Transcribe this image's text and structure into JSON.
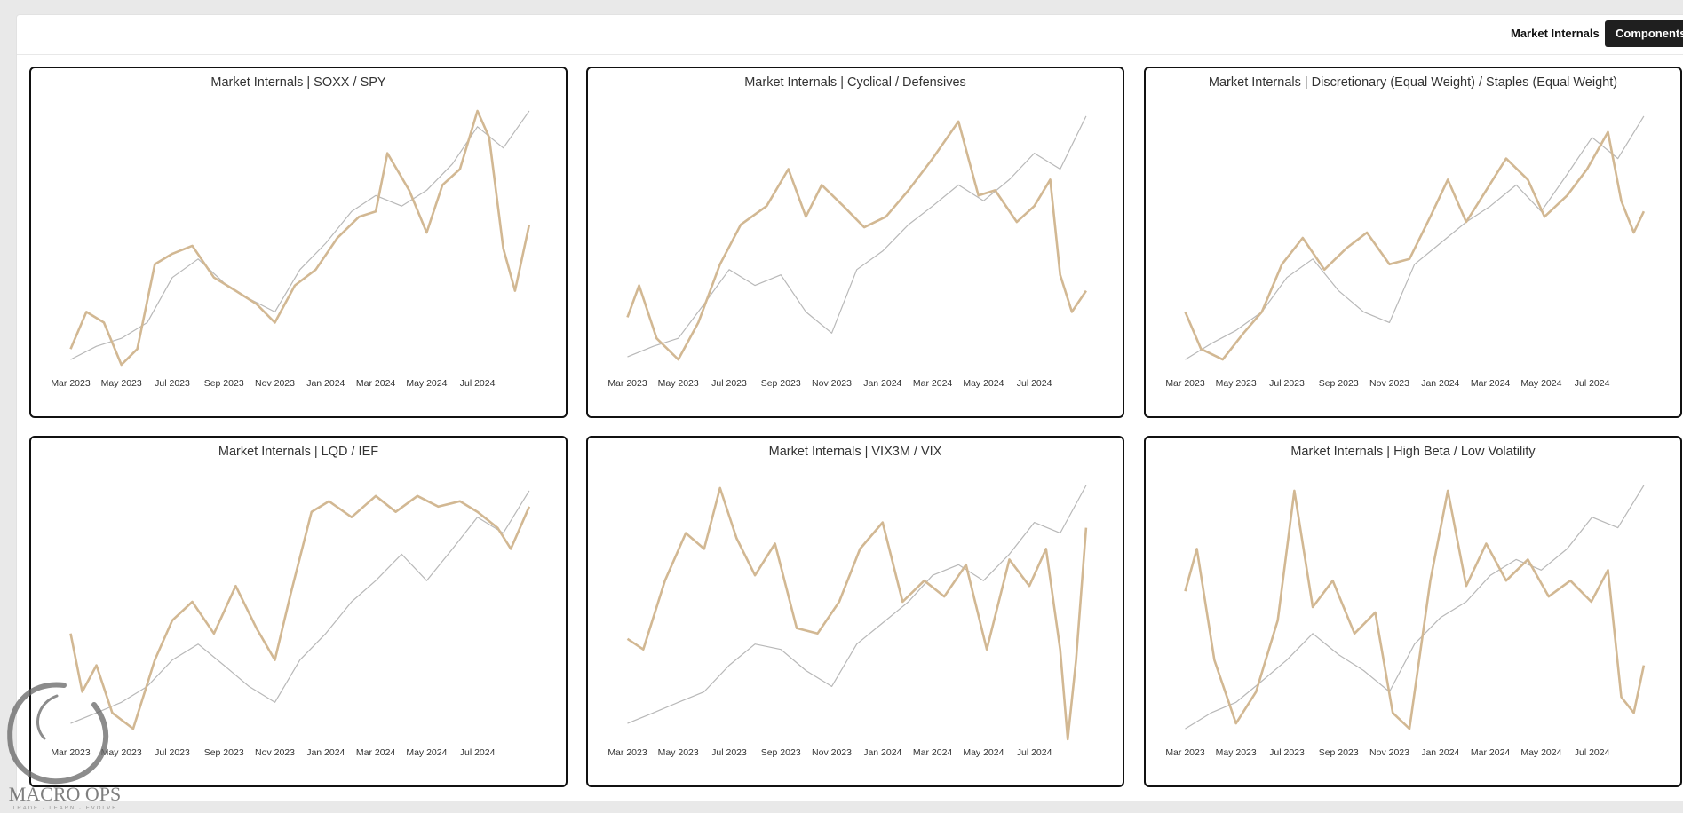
{
  "tabs": {
    "internals": "Market Internals",
    "components": "Components"
  },
  "logo": {
    "text": "MACRO OPS",
    "tagline": "TRADE · LEARN · EVOLVE"
  },
  "colors": {
    "primary_series": "#d2b893",
    "comparison_series": "#b8b8b8",
    "panel_border": "#111111"
  },
  "chart_data": [
    {
      "type": "line",
      "title": "Market Internals | SOXX / SPY",
      "x_ticks": [
        "Mar 2023",
        "May 2023",
        "Jul 2023",
        "Sep 2023",
        "Nov 2023",
        "Jan 2024",
        "Mar 2024",
        "May 2024",
        "Jul 2024"
      ],
      "x_range": [
        "2023-02-20",
        "2024-09-15"
      ],
      "y_range": [
        0,
        100
      ],
      "grid": false,
      "series": [
        {
          "color": "#b8b8b8",
          "x": [
            "2023-03-01",
            "2023-04-01",
            "2023-05-01",
            "2023-06-01",
            "2023-07-01",
            "2023-08-01",
            "2023-09-01",
            "2023-10-01",
            "2023-11-01",
            "2023-12-01",
            "2024-01-01",
            "2024-02-01",
            "2024-03-01",
            "2024-04-01",
            "2024-05-01",
            "2024-06-01",
            "2024-07-01",
            "2024-08-01",
            "2024-09-01"
          ],
          "values": [
            4,
            9,
            12,
            18,
            35,
            42,
            33,
            27,
            22,
            38,
            48,
            60,
            66,
            62,
            68,
            78,
            92,
            84,
            98
          ]
        },
        {
          "color": "#d2b893",
          "x": [
            "2023-03-01",
            "2023-03-20",
            "2023-04-10",
            "2023-05-01",
            "2023-05-20",
            "2023-06-10",
            "2023-07-01",
            "2023-07-25",
            "2023-08-20",
            "2023-09-15",
            "2023-10-10",
            "2023-11-01",
            "2023-11-25",
            "2023-12-20",
            "2024-01-15",
            "2024-02-10",
            "2024-03-01",
            "2024-03-15",
            "2024-04-10",
            "2024-05-01",
            "2024-05-20",
            "2024-06-10",
            "2024-07-01",
            "2024-07-15",
            "2024-08-01",
            "2024-08-15",
            "2024-09-01"
          ],
          "values": [
            8,
            22,
            18,
            2,
            8,
            40,
            44,
            47,
            35,
            30,
            25,
            18,
            32,
            38,
            50,
            58,
            60,
            82,
            68,
            52,
            70,
            76,
            98,
            88,
            46,
            30,
            55
          ]
        }
      ]
    },
    {
      "type": "line",
      "title": "Market Internals | Cyclical / Defensives",
      "x_ticks": [
        "Mar 2023",
        "May 2023",
        "Jul 2023",
        "Sep 2023",
        "Nov 2023",
        "Jan 2024",
        "Mar 2024",
        "May 2024",
        "Jul 2024"
      ],
      "x_range": [
        "2023-02-20",
        "2024-09-15"
      ],
      "y_range": [
        0,
        100
      ],
      "grid": false,
      "series": [
        {
          "color": "#b8b8b8",
          "x": [
            "2023-03-01",
            "2023-04-01",
            "2023-05-01",
            "2023-06-01",
            "2023-07-01",
            "2023-08-01",
            "2023-09-01",
            "2023-10-01",
            "2023-11-01",
            "2023-12-01",
            "2024-01-01",
            "2024-02-01",
            "2024-03-01",
            "2024-04-01",
            "2024-05-01",
            "2024-06-01",
            "2024-07-01",
            "2024-08-01",
            "2024-09-01"
          ],
          "values": [
            5,
            9,
            12,
            25,
            38,
            32,
            36,
            22,
            14,
            38,
            45,
            55,
            62,
            70,
            64,
            72,
            82,
            76,
            96
          ]
        },
        {
          "color": "#d2b893",
          "x": [
            "2023-03-01",
            "2023-03-15",
            "2023-04-05",
            "2023-05-01",
            "2023-05-25",
            "2023-06-20",
            "2023-07-15",
            "2023-08-15",
            "2023-09-10",
            "2023-10-01",
            "2023-10-20",
            "2023-11-15",
            "2023-12-10",
            "2024-01-05",
            "2024-02-01",
            "2024-03-01",
            "2024-04-01",
            "2024-04-25",
            "2024-05-15",
            "2024-06-10",
            "2024-07-01",
            "2024-07-20",
            "2024-08-01",
            "2024-08-15",
            "2024-09-01"
          ],
          "values": [
            20,
            32,
            12,
            4,
            18,
            40,
            55,
            62,
            76,
            58,
            70,
            62,
            54,
            58,
            68,
            80,
            94,
            66,
            68,
            56,
            62,
            72,
            36,
            22,
            30
          ]
        }
      ]
    },
    {
      "type": "line",
      "title": "Market Internals | Discretionary (Equal Weight) / Staples (Equal Weight)",
      "x_ticks": [
        "Mar 2023",
        "May 2023",
        "Jul 2023",
        "Sep 2023",
        "Nov 2023",
        "Jan 2024",
        "Mar 2024",
        "May 2024",
        "Jul 2024"
      ],
      "x_range": [
        "2023-02-20",
        "2024-09-15"
      ],
      "y_range": [
        0,
        100
      ],
      "grid": false,
      "series": [
        {
          "color": "#b8b8b8",
          "x": [
            "2023-03-01",
            "2023-04-01",
            "2023-05-01",
            "2023-06-01",
            "2023-07-01",
            "2023-08-01",
            "2023-09-01",
            "2023-10-01",
            "2023-11-01",
            "2023-12-01",
            "2024-01-01",
            "2024-02-01",
            "2024-03-01",
            "2024-04-01",
            "2024-05-01",
            "2024-06-01",
            "2024-07-01",
            "2024-08-01",
            "2024-09-01"
          ],
          "values": [
            4,
            10,
            15,
            22,
            35,
            42,
            30,
            22,
            18,
            40,
            48,
            56,
            62,
            70,
            60,
            74,
            88,
            80,
            96
          ]
        },
        {
          "color": "#d2b893",
          "x": [
            "2023-03-01",
            "2023-03-20",
            "2023-04-15",
            "2023-05-10",
            "2023-06-01",
            "2023-06-25",
            "2023-07-20",
            "2023-08-15",
            "2023-09-10",
            "2023-10-05",
            "2023-11-01",
            "2023-11-25",
            "2023-12-20",
            "2024-01-10",
            "2024-02-01",
            "2024-02-25",
            "2024-03-20",
            "2024-04-15",
            "2024-05-05",
            "2024-06-01",
            "2024-06-25",
            "2024-07-20",
            "2024-08-05",
            "2024-08-20",
            "2024-09-01"
          ],
          "values": [
            22,
            8,
            4,
            14,
            22,
            40,
            50,
            38,
            46,
            52,
            40,
            42,
            58,
            72,
            56,
            68,
            80,
            72,
            58,
            66,
            76,
            90,
            64,
            52,
            60
          ]
        }
      ]
    },
    {
      "type": "line",
      "title": "Market Internals | LQD / IEF",
      "x_ticks": [
        "Mar 2023",
        "May 2023",
        "Jul 2023",
        "Sep 2023",
        "Nov 2023",
        "Jan 2024",
        "Mar 2024",
        "May 2024",
        "Jul 2024"
      ],
      "x_range": [
        "2023-02-20",
        "2024-09-15"
      ],
      "y_range": [
        0,
        100
      ],
      "grid": false,
      "series": [
        {
          "color": "#b8b8b8",
          "x": [
            "2023-03-01",
            "2023-04-01",
            "2023-05-01",
            "2023-06-01",
            "2023-07-01",
            "2023-08-01",
            "2023-09-01",
            "2023-10-01",
            "2023-11-01",
            "2023-12-01",
            "2024-01-01",
            "2024-02-01",
            "2024-03-01",
            "2024-04-01",
            "2024-05-01",
            "2024-06-01",
            "2024-07-01",
            "2024-08-01",
            "2024-09-01"
          ],
          "values": [
            6,
            10,
            14,
            20,
            30,
            36,
            28,
            20,
            14,
            30,
            40,
            52,
            60,
            70,
            60,
            72,
            84,
            78,
            94
          ]
        },
        {
          "color": "#d2b893",
          "x": [
            "2023-03-01",
            "2023-03-15",
            "2023-04-01",
            "2023-04-20",
            "2023-05-15",
            "2023-06-10",
            "2023-07-01",
            "2023-07-25",
            "2023-08-20",
            "2023-09-15",
            "2023-10-10",
            "2023-11-01",
            "2023-11-20",
            "2023-12-15",
            "2024-01-05",
            "2024-02-01",
            "2024-03-01",
            "2024-03-25",
            "2024-04-20",
            "2024-05-15",
            "2024-06-10",
            "2024-07-01",
            "2024-07-25",
            "2024-08-10",
            "2024-09-01"
          ],
          "values": [
            40,
            18,
            28,
            10,
            4,
            30,
            45,
            52,
            40,
            58,
            42,
            30,
            55,
            86,
            90,
            84,
            92,
            86,
            92,
            88,
            90,
            86,
            80,
            72,
            88
          ]
        }
      ]
    },
    {
      "type": "line",
      "title": "Market Internals | VIX3M / VIX",
      "x_ticks": [
        "Mar 2023",
        "May 2023",
        "Jul 2023",
        "Sep 2023",
        "Nov 2023",
        "Jan 2024",
        "Mar 2024",
        "May 2024",
        "Jul 2024"
      ],
      "x_range": [
        "2023-02-20",
        "2024-09-15"
      ],
      "y_range": [
        0,
        100
      ],
      "grid": false,
      "series": [
        {
          "color": "#b8b8b8",
          "x": [
            "2023-03-01",
            "2023-04-01",
            "2023-05-01",
            "2023-06-01",
            "2023-07-01",
            "2023-08-01",
            "2023-09-01",
            "2023-10-01",
            "2023-11-01",
            "2023-12-01",
            "2024-01-01",
            "2024-02-01",
            "2024-03-01",
            "2024-04-01",
            "2024-05-01",
            "2024-06-01",
            "2024-07-01",
            "2024-08-01",
            "2024-09-01"
          ],
          "values": [
            6,
            10,
            14,
            18,
            28,
            36,
            34,
            26,
            20,
            36,
            44,
            52,
            62,
            66,
            60,
            70,
            82,
            78,
            96
          ]
        },
        {
          "color": "#d2b893",
          "x": [
            "2023-03-01",
            "2023-03-20",
            "2023-04-15",
            "2023-05-10",
            "2023-06-01",
            "2023-06-20",
            "2023-07-10",
            "2023-08-01",
            "2023-08-25",
            "2023-09-20",
            "2023-10-15",
            "2023-11-10",
            "2023-12-05",
            "2024-01-01",
            "2024-01-25",
            "2024-02-20",
            "2024-03-15",
            "2024-04-10",
            "2024-05-05",
            "2024-06-01",
            "2024-06-25",
            "2024-07-15",
            "2024-08-01",
            "2024-08-10",
            "2024-08-20",
            "2024-09-01"
          ],
          "values": [
            38,
            34,
            60,
            78,
            72,
            95,
            76,
            62,
            74,
            42,
            40,
            52,
            72,
            82,
            52,
            60,
            54,
            66,
            34,
            68,
            58,
            72,
            34,
            0,
            30,
            80
          ]
        }
      ]
    },
    {
      "type": "line",
      "title": "Market Internals | High Beta / Low Volatility",
      "x_ticks": [
        "Mar 2023",
        "May 2023",
        "Jul 2023",
        "Sep 2023",
        "Nov 2023",
        "Jan 2024",
        "Mar 2024",
        "May 2024",
        "Jul 2024"
      ],
      "x_range": [
        "2023-02-20",
        "2024-09-15"
      ],
      "y_range": [
        0,
        100
      ],
      "grid": false,
      "series": [
        {
          "color": "#b8b8b8",
          "x": [
            "2023-03-01",
            "2023-04-01",
            "2023-05-01",
            "2023-06-01",
            "2023-07-01",
            "2023-08-01",
            "2023-09-01",
            "2023-10-01",
            "2023-11-01",
            "2023-12-01",
            "2024-01-01",
            "2024-02-01",
            "2024-03-01",
            "2024-04-01",
            "2024-05-01",
            "2024-06-01",
            "2024-07-01",
            "2024-08-01",
            "2024-09-01"
          ],
          "values": [
            4,
            10,
            14,
            22,
            30,
            40,
            32,
            26,
            18,
            36,
            46,
            52,
            62,
            68,
            64,
            72,
            84,
            80,
            96
          ]
        },
        {
          "color": "#d2b893",
          "x": [
            "2023-03-01",
            "2023-03-15",
            "2023-04-05",
            "2023-05-01",
            "2023-05-25",
            "2023-06-20",
            "2023-07-10",
            "2023-08-01",
            "2023-08-25",
            "2023-09-20",
            "2023-10-15",
            "2023-11-05",
            "2023-11-25",
            "2023-12-20",
            "2024-01-10",
            "2024-02-01",
            "2024-02-25",
            "2024-03-20",
            "2024-04-15",
            "2024-05-10",
            "2024-06-05",
            "2024-06-30",
            "2024-07-20",
            "2024-08-05",
            "2024-08-20",
            "2024-09-01"
          ],
          "values": [
            56,
            72,
            30,
            6,
            18,
            45,
            94,
            50,
            60,
            40,
            48,
            10,
            4,
            60,
            94,
            58,
            74,
            60,
            68,
            54,
            60,
            52,
            64,
            16,
            10,
            28
          ]
        }
      ]
    }
  ]
}
